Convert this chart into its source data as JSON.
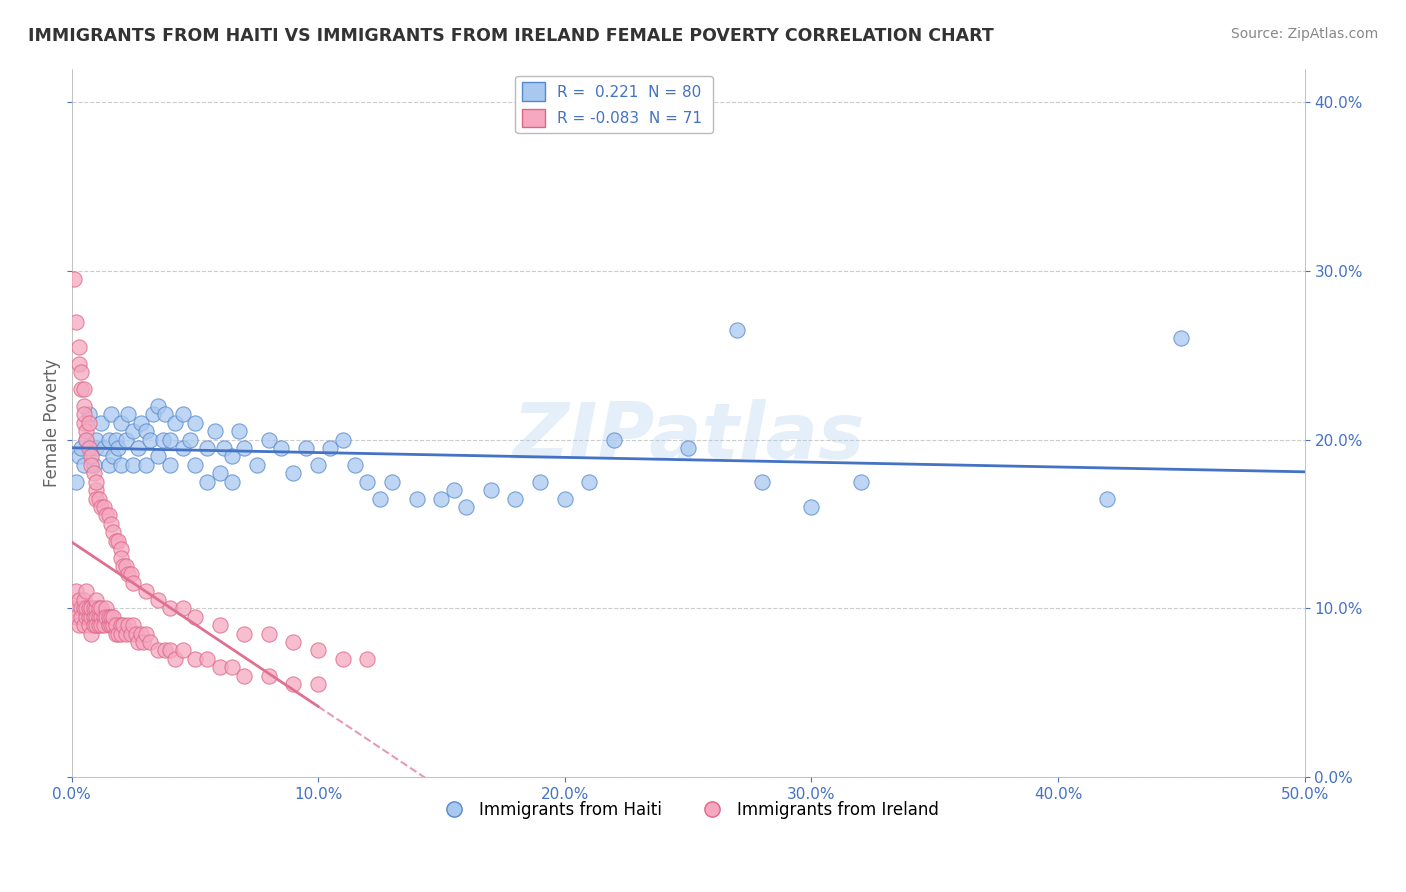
{
  "title": "IMMIGRANTS FROM HAITI VS IMMIGRANTS FROM IRELAND FEMALE POVERTY CORRELATION CHART",
  "source": "Source: ZipAtlas.com",
  "ylabel": "Female Poverty",
  "xlim": [
    0.0,
    0.5
  ],
  "ylim": [
    0.0,
    0.42
  ],
  "x_ticks": [
    0.0,
    0.1,
    0.2,
    0.3,
    0.4,
    0.5
  ],
  "y_ticks": [
    0.0,
    0.1,
    0.2,
    0.3,
    0.4
  ],
  "haiti_R": 0.221,
  "haiti_N": 80,
  "ireland_R": -0.083,
  "ireland_N": 71,
  "haiti_color": "#A8C8F0",
  "ireland_color": "#F5A8C0",
  "haiti_edge_color": "#5588CC",
  "ireland_edge_color": "#DD6688",
  "haiti_line_color": "#4472C4",
  "ireland_line_color": "#E07090",
  "watermark": "ZIPatlas",
  "legend_label_haiti": "Immigrants from Haiti",
  "legend_label_ireland": "Immigrants from Ireland",
  "haiti_x": [
    0.002,
    0.003,
    0.004,
    0.005,
    0.006,
    0.007,
    0.008,
    0.009,
    0.01,
    0.01,
    0.012,
    0.013,
    0.015,
    0.015,
    0.016,
    0.017,
    0.018,
    0.019,
    0.02,
    0.02,
    0.022,
    0.023,
    0.025,
    0.025,
    0.027,
    0.028,
    0.03,
    0.03,
    0.032,
    0.033,
    0.035,
    0.035,
    0.037,
    0.038,
    0.04,
    0.04,
    0.042,
    0.045,
    0.045,
    0.048,
    0.05,
    0.05,
    0.055,
    0.055,
    0.058,
    0.06,
    0.062,
    0.065,
    0.065,
    0.068,
    0.07,
    0.075,
    0.08,
    0.085,
    0.09,
    0.095,
    0.1,
    0.105,
    0.11,
    0.115,
    0.12,
    0.125,
    0.13,
    0.14,
    0.15,
    0.155,
    0.16,
    0.17,
    0.18,
    0.19,
    0.2,
    0.21,
    0.22,
    0.25,
    0.27,
    0.28,
    0.3,
    0.32,
    0.42,
    0.45
  ],
  "haiti_y": [
    0.175,
    0.19,
    0.195,
    0.185,
    0.2,
    0.215,
    0.195,
    0.185,
    0.195,
    0.2,
    0.21,
    0.195,
    0.185,
    0.2,
    0.215,
    0.19,
    0.2,
    0.195,
    0.185,
    0.21,
    0.2,
    0.215,
    0.185,
    0.205,
    0.195,
    0.21,
    0.185,
    0.205,
    0.2,
    0.215,
    0.22,
    0.19,
    0.2,
    0.215,
    0.185,
    0.2,
    0.21,
    0.195,
    0.215,
    0.2,
    0.185,
    0.21,
    0.175,
    0.195,
    0.205,
    0.18,
    0.195,
    0.175,
    0.19,
    0.205,
    0.195,
    0.185,
    0.2,
    0.195,
    0.18,
    0.195,
    0.185,
    0.195,
    0.2,
    0.185,
    0.175,
    0.165,
    0.175,
    0.165,
    0.165,
    0.17,
    0.16,
    0.17,
    0.165,
    0.175,
    0.165,
    0.175,
    0.2,
    0.195,
    0.265,
    0.175,
    0.16,
    0.175,
    0.165,
    0.26
  ],
  "ireland_x": [
    0.001,
    0.002,
    0.002,
    0.003,
    0.003,
    0.004,
    0.004,
    0.005,
    0.005,
    0.005,
    0.006,
    0.006,
    0.006,
    0.007,
    0.007,
    0.007,
    0.008,
    0.008,
    0.008,
    0.009,
    0.009,
    0.009,
    0.01,
    0.01,
    0.01,
    0.01,
    0.011,
    0.011,
    0.011,
    0.012,
    0.012,
    0.012,
    0.013,
    0.013,
    0.014,
    0.014,
    0.015,
    0.015,
    0.016,
    0.016,
    0.017,
    0.017,
    0.018,
    0.018,
    0.019,
    0.02,
    0.02,
    0.021,
    0.022,
    0.023,
    0.024,
    0.025,
    0.026,
    0.027,
    0.028,
    0.029,
    0.03,
    0.032,
    0.035,
    0.038,
    0.04,
    0.042,
    0.045,
    0.05,
    0.055,
    0.06,
    0.065,
    0.07,
    0.08,
    0.09,
    0.1
  ],
  "ireland_y": [
    0.1,
    0.11,
    0.095,
    0.105,
    0.09,
    0.1,
    0.095,
    0.1,
    0.105,
    0.09,
    0.095,
    0.1,
    0.11,
    0.095,
    0.1,
    0.09,
    0.095,
    0.1,
    0.085,
    0.095,
    0.1,
    0.09,
    0.1,
    0.095,
    0.09,
    0.105,
    0.095,
    0.09,
    0.1,
    0.095,
    0.09,
    0.1,
    0.095,
    0.09,
    0.1,
    0.095,
    0.09,
    0.095,
    0.09,
    0.095,
    0.09,
    0.095,
    0.085,
    0.09,
    0.085,
    0.09,
    0.085,
    0.09,
    0.085,
    0.09,
    0.085,
    0.09,
    0.085,
    0.08,
    0.085,
    0.08,
    0.085,
    0.08,
    0.075,
    0.075,
    0.075,
    0.07,
    0.075,
    0.07,
    0.07,
    0.065,
    0.065,
    0.06,
    0.06,
    0.055,
    0.055
  ],
  "ireland_extra_x": [
    0.001,
    0.002,
    0.003,
    0.003,
    0.004,
    0.004,
    0.005,
    0.005,
    0.005,
    0.005,
    0.006,
    0.006,
    0.007,
    0.007,
    0.008,
    0.008,
    0.009,
    0.01,
    0.01,
    0.01,
    0.011,
    0.012,
    0.013,
    0.014,
    0.015,
    0.016,
    0.017,
    0.018,
    0.019,
    0.02,
    0.02,
    0.021,
    0.022,
    0.023,
    0.024,
    0.025,
    0.03,
    0.035,
    0.04,
    0.045,
    0.05,
    0.06,
    0.07,
    0.08,
    0.09,
    0.1,
    0.11,
    0.12
  ],
  "ireland_extra_y": [
    0.295,
    0.27,
    0.255,
    0.245,
    0.24,
    0.23,
    0.22,
    0.21,
    0.23,
    0.215,
    0.205,
    0.2,
    0.21,
    0.195,
    0.19,
    0.185,
    0.18,
    0.17,
    0.175,
    0.165,
    0.165,
    0.16,
    0.16,
    0.155,
    0.155,
    0.15,
    0.145,
    0.14,
    0.14,
    0.135,
    0.13,
    0.125,
    0.125,
    0.12,
    0.12,
    0.115,
    0.11,
    0.105,
    0.1,
    0.1,
    0.095,
    0.09,
    0.085,
    0.085,
    0.08,
    0.075,
    0.07,
    0.07
  ]
}
